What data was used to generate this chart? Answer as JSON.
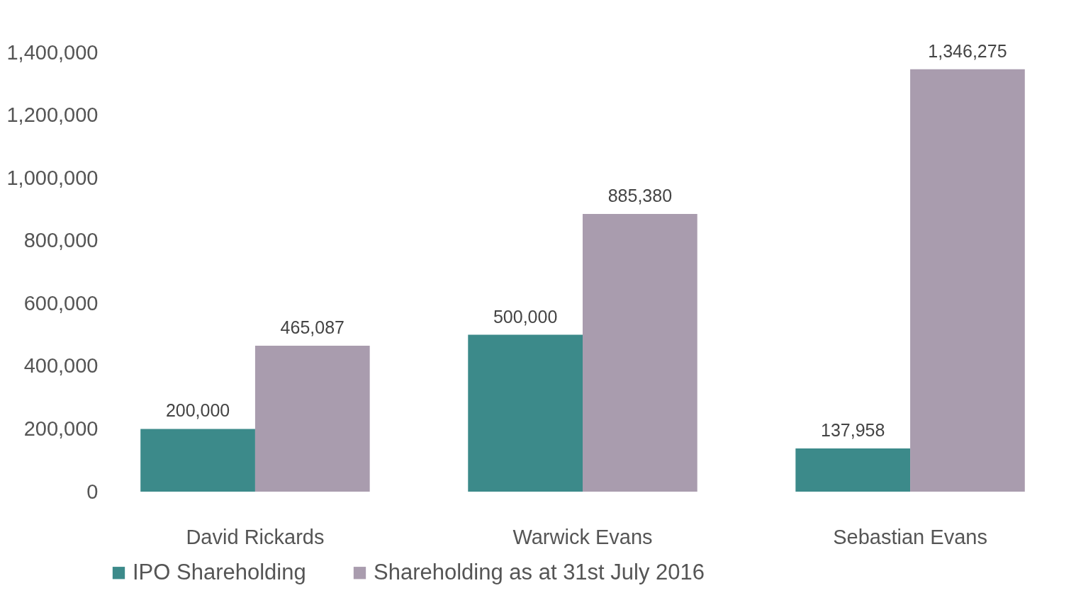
{
  "chart_data": {
    "type": "bar",
    "categories": [
      "David Rickards",
      "Warwick Evans",
      "Sebastian Evans"
    ],
    "series": [
      {
        "name": "IPO Shareholding",
        "color": "#3c8a8a",
        "values": [
          200000,
          500000,
          137958
        ],
        "value_labels": [
          "200,000",
          "500,000",
          "137,958"
        ]
      },
      {
        "name": "Shareholding as at 31st July 2016",
        "color": "#a99cae",
        "values": [
          465087,
          885380,
          1346275
        ],
        "value_labels": [
          "465,087",
          "885,380",
          "1,346,275"
        ]
      }
    ],
    "ylim": [
      0,
      1400000
    ],
    "yticks": [
      0,
      {
        "value": 200000,
        "label": "200,000"
      },
      {
        "value": 400000,
        "label": "400,000"
      },
      {
        "value": 600000,
        "label": "600,000"
      },
      {
        "value": 800000,
        "label": "800,000"
      },
      {
        "value": 1000000,
        "label": "1,000,000"
      },
      {
        "value": 1200000,
        "label": "1,200,000"
      },
      {
        "value": 1400000,
        "label": "1,400,000"
      }
    ],
    "grid": false,
    "legend": "bottom"
  }
}
